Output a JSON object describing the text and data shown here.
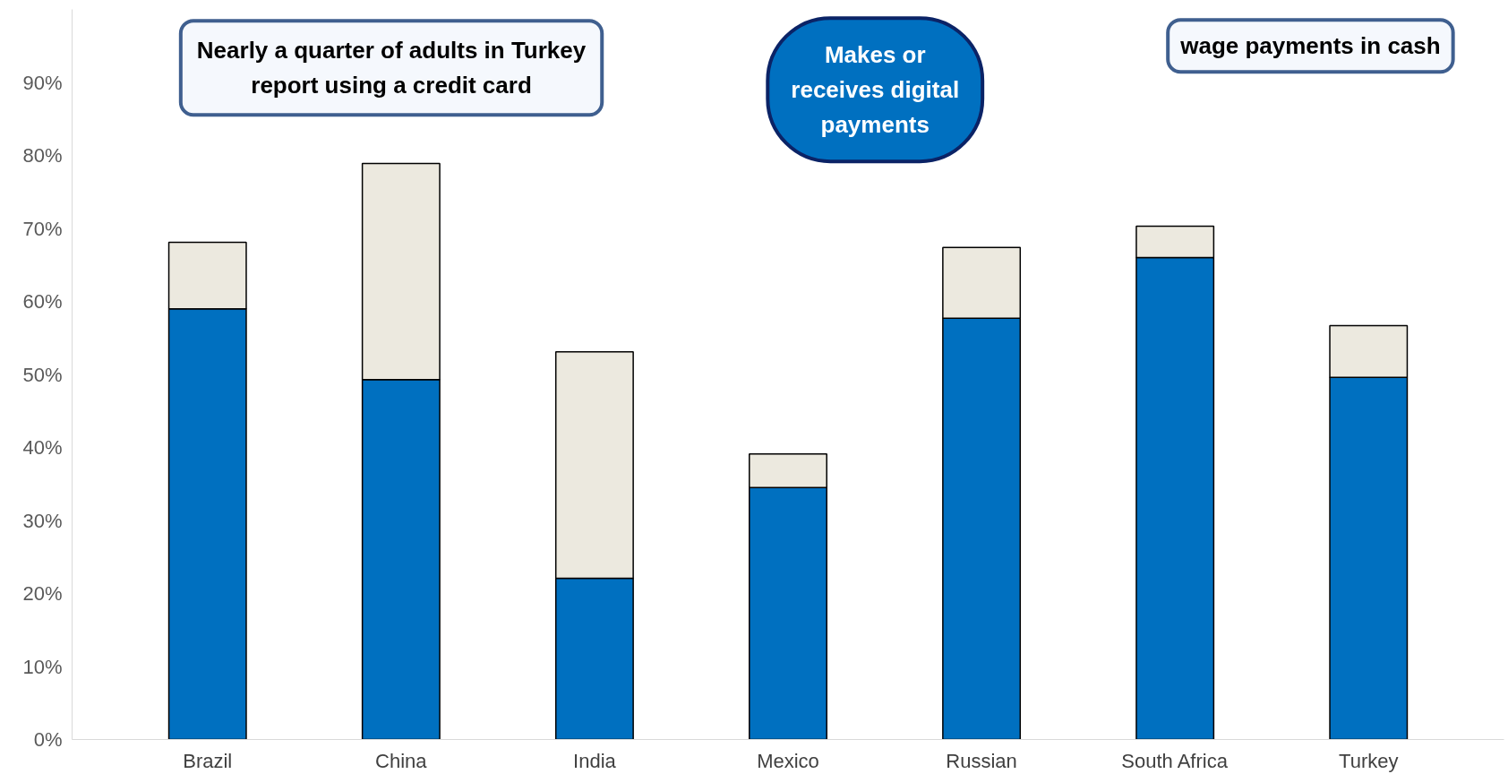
{
  "chart_data": {
    "type": "bar",
    "stacked": true,
    "categories": [
      "Brazil",
      "China",
      "India",
      "Mexico",
      "Russian",
      "South Africa",
      "Turkey"
    ],
    "series": [
      {
        "name": "Makes or receives digital payments",
        "color": "#0070c0",
        "values": [
          59.0,
          49.3,
          22.1,
          34.5,
          57.7,
          66.0,
          49.6
        ]
      },
      {
        "color": "#ece9df",
        "values": [
          9.1,
          29.6,
          31.0,
          4.6,
          9.7,
          4.3,
          7.1
        ]
      }
    ],
    "ylim": [
      0,
      100
    ],
    "yticks": [
      {
        "value": 0,
        "label": "0%"
      },
      {
        "value": 10,
        "label": "10%"
      },
      {
        "value": 20,
        "label": "20%"
      },
      {
        "value": 30,
        "label": "30%"
      },
      {
        "value": 40,
        "label": "40%"
      },
      {
        "value": 50,
        "label": "50%"
      },
      {
        "value": 60,
        "label": "60%"
      },
      {
        "value": 70,
        "label": "70%"
      },
      {
        "value": 80,
        "label": "80%"
      },
      {
        "value": 90,
        "label": "90%"
      }
    ],
    "grid": false,
    "annotations": [
      "Nearly a quarter of adults in Turkey\nreport using a credit card",
      "wage payments in cash"
    ]
  }
}
